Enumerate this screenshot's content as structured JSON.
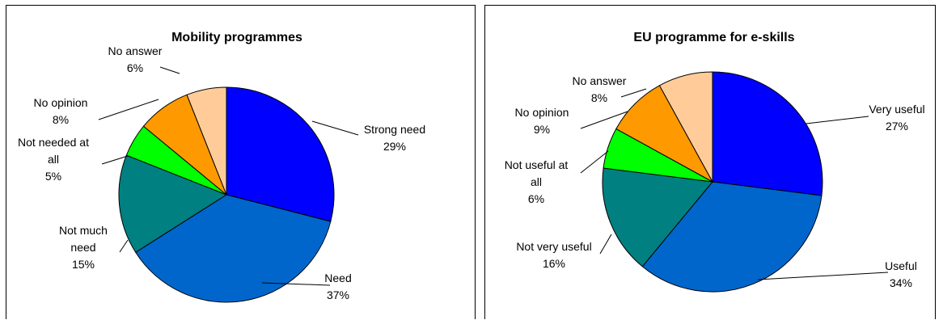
{
  "chart_data": [
    {
      "type": "pie",
      "title": "Mobility programmes",
      "categories": [
        "Strong need",
        "Need",
        "Not much need",
        "Not needed at all",
        "No opinion",
        "No answer"
      ],
      "values": [
        29,
        37,
        15,
        5,
        8,
        6
      ],
      "value_labels": [
        "29%",
        "37%",
        "15%",
        "5%",
        "8%",
        "6%"
      ],
      "colors": [
        "#0000ff",
        "#0066cc",
        "#008080",
        "#00ff00",
        "#ff9900",
        "#ffcc99"
      ],
      "legend": "none"
    },
    {
      "type": "pie",
      "title": "EU programme for e-skills",
      "categories": [
        "Very useful",
        "Useful",
        "Not very useful",
        "Not useful at all",
        "No opinion",
        "No answer"
      ],
      "values": [
        27,
        34,
        16,
        6,
        9,
        8
      ],
      "value_labels": [
        "27%",
        "34%",
        "16%",
        "6%",
        "9%",
        "8%"
      ],
      "colors": [
        "#0000ff",
        "#0066cc",
        "#008080",
        "#00ff00",
        "#ff9900",
        "#ffcc99"
      ],
      "legend": "none"
    }
  ]
}
